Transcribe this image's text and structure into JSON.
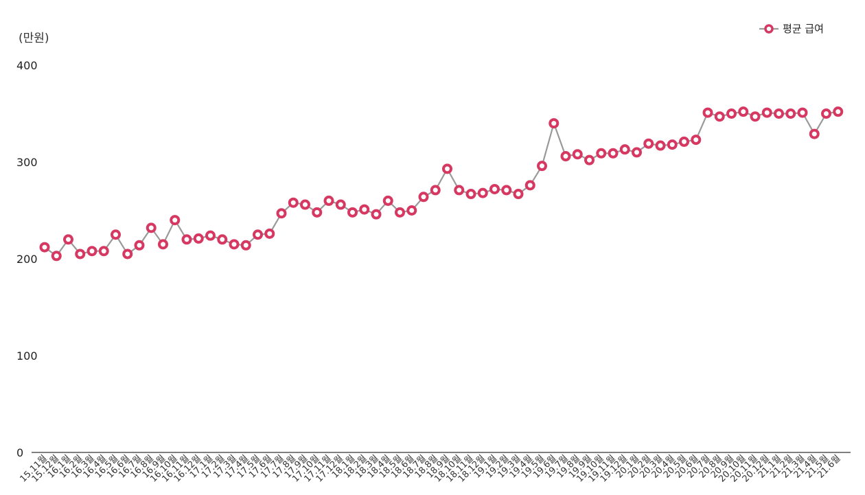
{
  "chart_data": {
    "type": "line",
    "title": "",
    "unit_label": "(만원)",
    "xlabel": "",
    "ylabel": "",
    "ylim": [
      0,
      400
    ],
    "yticks": [
      0,
      100,
      200,
      300,
      400
    ],
    "grid": false,
    "legend": {
      "position": "top-right"
    },
    "line_color": "#999999",
    "marker_color": "#d63862",
    "categories": [
      "15.11월",
      "15.12월",
      "16.1월",
      "16.2월",
      "16.3월",
      "16.4월",
      "16.5월",
      "16.6월",
      "16.7월",
      "16.8월",
      "16.9월",
      "16.10월",
      "16.11월",
      "16.12월",
      "17.1월",
      "17.2월",
      "17.3월",
      "17.4월",
      "17.5월",
      "17.6월",
      "17.7월",
      "17.8월",
      "17.9월",
      "17.10월",
      "17.11월",
      "17.12월",
      "18.1월",
      "18.2월",
      "18.3월",
      "18.4월",
      "18.5월",
      "18.6월",
      "18.7월",
      "18.8월",
      "18.9월",
      "18.10월",
      "18.11월",
      "18.12월",
      "19.1월",
      "19.2월",
      "19.3월",
      "19.4월",
      "19.5월",
      "19.6월",
      "19.7월",
      "19.8월",
      "19.9월",
      "19.10월",
      "19.11월",
      "19.12월",
      "20.1월",
      "20.2월",
      "20.3월",
      "20.4월",
      "20.5월",
      "20.6월",
      "20.7월",
      "20.8월",
      "20.9월",
      "20.10월",
      "20.11월",
      "20.12월",
      "21.1월",
      "21.2월",
      "21.3월",
      "21.4월",
      "21.5월",
      "21.6월"
    ],
    "series": [
      {
        "name": "평균 급여",
        "values": [
          212,
          203,
          220,
          205,
          208,
          208,
          225,
          205,
          214,
          232,
          215,
          240,
          220,
          221,
          224,
          220,
          215,
          214,
          225,
          226,
          247,
          258,
          256,
          248,
          260,
          256,
          248,
          251,
          246,
          260,
          248,
          250,
          264,
          271,
          293,
          271,
          267,
          268,
          272,
          271,
          267,
          276,
          296,
          340,
          306,
          308,
          302,
          309,
          309,
          313,
          310,
          319,
          317,
          318,
          321,
          323,
          351,
          347,
          350,
          352,
          347,
          351,
          350,
          350,
          351,
          329,
          350,
          352
        ]
      }
    ]
  }
}
